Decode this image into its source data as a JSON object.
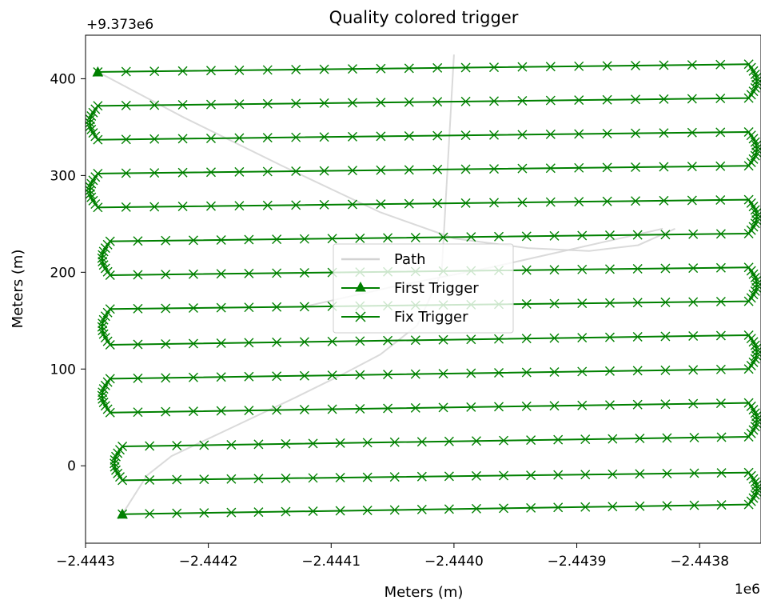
{
  "chart_data": {
    "type": "line",
    "title": "Quality colored trigger",
    "xlabel": "Meters (m)",
    "ylabel": "Meters (m)",
    "x_offset_label": "1e6",
    "y_offset_label": "+9.373e6",
    "x_scale": 1000000,
    "y_offset": 9373000,
    "xlim": [
      -2.4443,
      -2.44375
    ],
    "ylim": [
      -80,
      445
    ],
    "x_ticks": [
      -2.4443,
      -2.4442,
      -2.4441,
      -2.444,
      -2.4439,
      -2.4438
    ],
    "x_tick_labels": [
      "−2.4443",
      "−2.4442",
      "−2.4441",
      "−2.4440",
      "−2.4439",
      "−2.4438"
    ],
    "y_ticks": [
      0,
      100,
      200,
      300,
      400
    ],
    "y_tick_labels": [
      "0",
      "100",
      "200",
      "300",
      "400"
    ],
    "grid": false,
    "legend_position": "center",
    "colors": {
      "trigger": "#008000",
      "path": "#d3d3d3"
    },
    "lanes": [
      {
        "y_start": -50,
        "y_end": -40,
        "x_start": -2.44427,
        "x_end": -2.44376
      },
      {
        "y_start": -15,
        "y_end": -7,
        "x_start": -2.44427,
        "x_end": -2.44376
      },
      {
        "y_start": 20,
        "y_end": 30,
        "x_start": -2.44427,
        "x_end": -2.44376
      },
      {
        "y_start": 55,
        "y_end": 65,
        "x_start": -2.44428,
        "x_end": -2.44376
      },
      {
        "y_start": 90,
        "y_end": 100,
        "x_start": -2.44428,
        "x_end": -2.44376
      },
      {
        "y_start": 125,
        "y_end": 135,
        "x_start": -2.44428,
        "x_end": -2.44376
      },
      {
        "y_start": 162,
        "y_end": 170,
        "x_start": -2.44428,
        "x_end": -2.44376
      },
      {
        "y_start": 197,
        "y_end": 205,
        "x_start": -2.44428,
        "x_end": -2.44376
      },
      {
        "y_start": 232,
        "y_end": 240,
        "x_start": -2.44428,
        "x_end": -2.44376
      },
      {
        "y_start": 267,
        "y_end": 275,
        "x_start": -2.44429,
        "x_end": -2.44376
      },
      {
        "y_start": 302,
        "y_end": 310,
        "x_start": -2.44429,
        "x_end": -2.44376
      },
      {
        "y_start": 337,
        "y_end": 345,
        "x_start": -2.44429,
        "x_end": -2.44376
      },
      {
        "y_start": 372,
        "y_end": 380,
        "x_start": -2.44429,
        "x_end": -2.44376
      },
      {
        "y_start": 407,
        "y_end": 415,
        "x_start": -2.44429,
        "x_end": -2.44376
      }
    ],
    "path_segments": [
      {
        "x": [
          -2.44427,
          -2.44426,
          -2.44425,
          -2.44423,
          -2.44418,
          -2.44413,
          -2.44409,
          -2.44406,
          -2.44403,
          -2.44401,
          -2.444
        ],
        "y": [
          -50,
          -30,
          -10,
          10,
          40,
          70,
          95,
          115,
          145,
          200,
          425
        ]
      },
      {
        "x": [
          -2.44429,
          -2.44422,
          -2.44414,
          -2.44406,
          -2.444,
          -2.44394,
          -2.44389,
          -2.44385,
          -2.44382
        ],
        "y": [
          407,
          360,
          310,
          262,
          235,
          225,
          222,
          228,
          245
        ]
      },
      {
        "x": [
          -2.44412,
          -2.44405,
          -2.44397,
          -2.4439,
          -2.44383
        ],
        "y": [
          165,
          185,
          205,
          225,
          245
        ]
      }
    ],
    "series": [
      {
        "name": "Path",
        "color": "#d3d3d3",
        "marker": "none"
      },
      {
        "name": "First Trigger",
        "color": "#008000",
        "marker": "triangle"
      },
      {
        "name": "Fix Trigger",
        "color": "#008000",
        "marker": "x"
      }
    ],
    "first_trigger": [
      {
        "x": -2.44427,
        "y": -50
      },
      {
        "x": -2.44429,
        "y": 407
      }
    ]
  }
}
